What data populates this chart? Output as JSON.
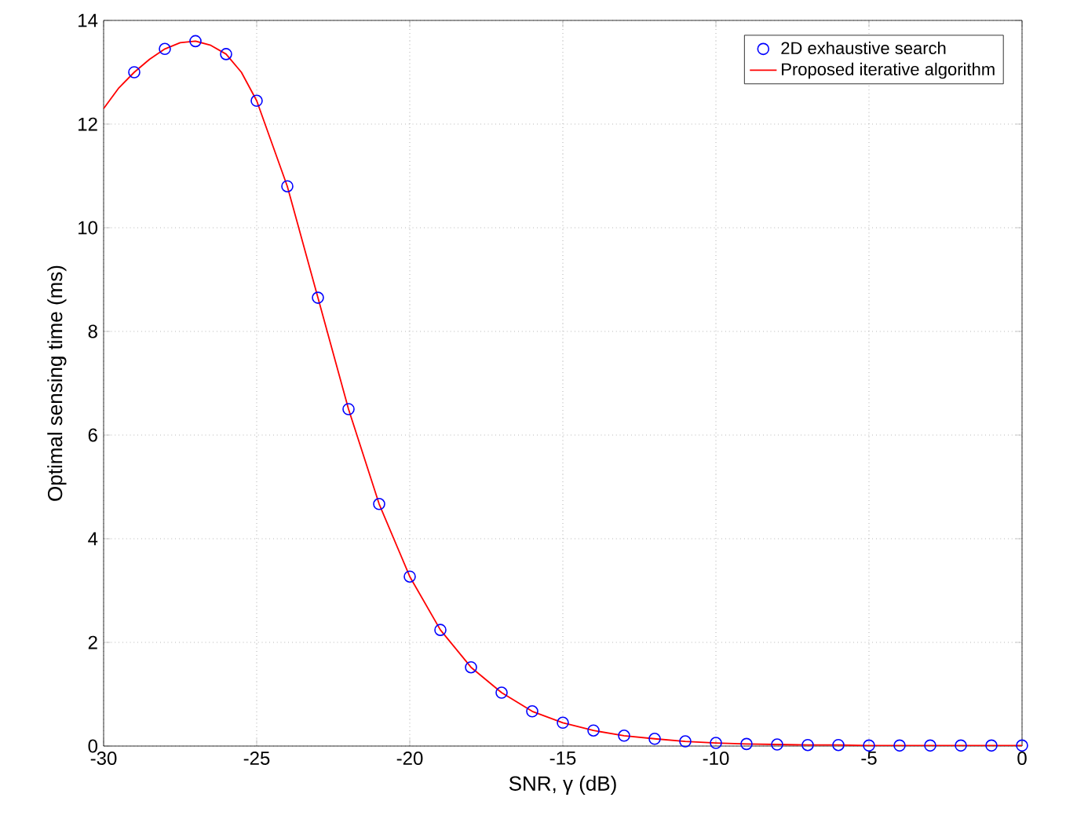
{
  "chart_data": {
    "type": "line",
    "xlabel": "SNR, γ (dB)",
    "ylabel": "Optimal sensing time (ms)",
    "xlim": [
      -30,
      0
    ],
    "ylim": [
      0,
      14
    ],
    "xticks": [
      -30,
      -25,
      -20,
      -15,
      -10,
      -5,
      0
    ],
    "yticks": [
      0,
      2,
      4,
      6,
      8,
      10,
      12,
      14
    ],
    "grid": true,
    "legend": "top right",
    "series": [
      {
        "name": "2D exhaustive search",
        "type": "scatter",
        "marker": "circle",
        "color": "#0000ff",
        "x": [
          -29,
          -28,
          -27,
          -26,
          -25,
          -24,
          -23,
          -22,
          -21,
          -20,
          -19,
          -18,
          -17,
          -16,
          -15,
          -14,
          -13,
          -12,
          -11,
          -10,
          -9,
          -8,
          -7,
          -6,
          -5,
          -4,
          -3,
          -2,
          -1,
          0
        ],
        "values": [
          13.0,
          13.45,
          13.6,
          13.35,
          12.45,
          10.8,
          8.65,
          6.5,
          4.67,
          3.27,
          2.24,
          1.52,
          1.03,
          0.67,
          0.45,
          0.3,
          0.2,
          0.14,
          0.09,
          0.06,
          0.04,
          0.03,
          0.02,
          0.02,
          0.01,
          0.01,
          0.01,
          0.01,
          0.01,
          0.01
        ]
      },
      {
        "name": "Proposed iterative algorithm",
        "type": "line",
        "marker": "none",
        "line_style": "solid",
        "color": "#ff0000",
        "x": [
          -30,
          -29.5,
          -29,
          -28.5,
          -28,
          -27.5,
          -27,
          -26.5,
          -26,
          -25.5,
          -25,
          -24,
          -23,
          -22,
          -21,
          -20,
          -19,
          -18,
          -17,
          -16,
          -15,
          -14,
          -13,
          -12,
          -11,
          -10,
          -9,
          -8,
          -7,
          -6,
          -5,
          -4,
          -3,
          -2,
          -1,
          0
        ],
        "values": [
          12.3,
          12.7,
          13.0,
          13.25,
          13.45,
          13.57,
          13.6,
          13.52,
          13.35,
          13.0,
          12.45,
          10.8,
          8.65,
          6.5,
          4.67,
          3.27,
          2.24,
          1.52,
          1.03,
          0.67,
          0.45,
          0.3,
          0.2,
          0.14,
          0.09,
          0.06,
          0.04,
          0.03,
          0.02,
          0.02,
          0.01,
          0.01,
          0.01,
          0.01,
          0.01,
          0.01
        ]
      }
    ]
  }
}
